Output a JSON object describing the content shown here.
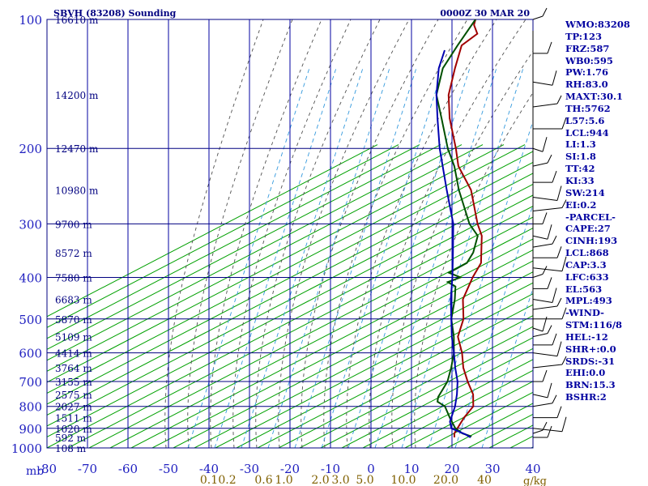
{
  "chart_data": {
    "type": "line",
    "station": "SBVH (83208)",
    "title_left": "SBVH (83208) Sounding",
    "title_right": "0000Z 30 MAR 20",
    "pressure_unit": "mb",
    "mixing_unit": "g/kg",
    "pressure_range": [
      100,
      1000
    ],
    "temperature_range": [
      -80,
      40
    ],
    "pressure_ticks": [
      100,
      200,
      300,
      400,
      500,
      600,
      700,
      800,
      900,
      1000
    ],
    "temperature_ticks": [
      -80,
      -70,
      -60,
      -50,
      -40,
      -30,
      -20,
      -10,
      0,
      10,
      20,
      30,
      40
    ],
    "temperature_tick_labels": [
      "-80",
      "-70",
      "-60",
      "-50",
      "-40",
      "-30",
      "-20",
      "-10",
      "0",
      "10",
      "20",
      "30",
      "40"
    ],
    "mixing_ratio_labels": [
      {
        "label": "0.1",
        "temp": -40
      },
      {
        "label": "0.2",
        "temp": -35.5
      },
      {
        "label": "0.6",
        "temp": -26.5
      },
      {
        "label": "1.0",
        "temp": -21.5
      },
      {
        "label": "2.0",
        "temp": -12.5
      },
      {
        "label": "3.0",
        "temp": -7.5
      },
      {
        "label": "5.0",
        "temp": -1.5
      },
      {
        "label": "10.0",
        "temp": 8
      },
      {
        "label": "20.0",
        "temp": 18.5
      },
      {
        "label": "40",
        "temp": 28
      }
    ],
    "height_labels": [
      {
        "label": "16610 m",
        "p": 100
      },
      {
        "label": "14200 m",
        "p": 150
      },
      {
        "label": "12470 m",
        "p": 200
      },
      {
        "label": "10980 m",
        "p": 250
      },
      {
        "label": "9700 m",
        "p": 300
      },
      {
        "label": "8572 m",
        "p": 350
      },
      {
        "label": "7580 m",
        "p": 400
      },
      {
        "label": "6683 m",
        "p": 450
      },
      {
        "label": "5870 m",
        "p": 500
      },
      {
        "label": "5109 m",
        "p": 550
      },
      {
        "label": "4414 m",
        "p": 600
      },
      {
        "label": "3764 m",
        "p": 650
      },
      {
        "label": "3155 m",
        "p": 700
      },
      {
        "label": "2575 m",
        "p": 750
      },
      {
        "label": "2027 m",
        "p": 800
      },
      {
        "label": "1511 m",
        "p": 850
      },
      {
        "label": "1020 m",
        "p": 900
      },
      {
        "label": "592 m",
        "p": 945
      },
      {
        "label": "108 m",
        "p": 1000
      }
    ],
    "series": [
      {
        "id": "temperature",
        "color": "#a00000",
        "points": [
          [
            945,
            18
          ],
          [
            925,
            17
          ],
          [
            900,
            16.5
          ],
          [
            850,
            15.5
          ],
          [
            800,
            15
          ],
          [
            750,
            12
          ],
          [
            700,
            7.5
          ],
          [
            650,
            3
          ],
          [
            600,
            -1
          ],
          [
            550,
            -6
          ],
          [
            500,
            -9
          ],
          [
            450,
            -14
          ],
          [
            400,
            -17
          ],
          [
            370,
            -18.5
          ],
          [
            350,
            -21
          ],
          [
            320,
            -25
          ],
          [
            300,
            -29
          ],
          [
            250,
            -39
          ],
          [
            220,
            -48
          ],
          [
            200,
            -53
          ],
          [
            170,
            -62
          ],
          [
            150,
            -68
          ],
          [
            130,
            -73
          ],
          [
            115,
            -77
          ],
          [
            108,
            -76
          ],
          [
            103,
            -79
          ],
          [
            100,
            -80
          ]
        ]
      },
      {
        "id": "dewpoint",
        "color": "#005000",
        "points": [
          [
            940,
            22
          ],
          [
            925,
            19
          ],
          [
            900,
            16
          ],
          [
            850,
            12
          ],
          [
            800,
            8
          ],
          [
            780,
            5
          ],
          [
            760,
            4
          ],
          [
            700,
            2.5
          ],
          [
            650,
            0
          ],
          [
            600,
            -3
          ],
          [
            550,
            -7
          ],
          [
            500,
            -12
          ],
          [
            450,
            -16
          ],
          [
            420,
            -19
          ],
          [
            410,
            -22
          ],
          [
            400,
            -20
          ],
          [
            390,
            -24
          ],
          [
            370,
            -22
          ],
          [
            350,
            -23
          ],
          [
            320,
            -26
          ],
          [
            300,
            -31
          ],
          [
            250,
            -42
          ],
          [
            220,
            -49
          ],
          [
            200,
            -55
          ],
          [
            170,
            -64
          ],
          [
            150,
            -71
          ],
          [
            130,
            -76
          ],
          [
            115,
            -78
          ],
          [
            100,
            -80
          ]
        ]
      },
      {
        "id": "parcel",
        "color": "#0000b0",
        "points": [
          [
            945,
            22
          ],
          [
            930,
            20
          ],
          [
            900,
            15
          ],
          [
            868,
            13
          ],
          [
            800,
            10.5
          ],
          [
            750,
            8
          ],
          [
            700,
            5
          ],
          [
            650,
            1
          ],
          [
            600,
            -3
          ],
          [
            550,
            -7.5
          ],
          [
            500,
            -12
          ],
          [
            450,
            -17
          ],
          [
            400,
            -22
          ],
          [
            350,
            -28
          ],
          [
            300,
            -35
          ],
          [
            250,
            -45
          ],
          [
            200,
            -57
          ],
          [
            170,
            -65
          ],
          [
            150,
            -71
          ],
          [
            130,
            -77
          ],
          [
            118,
            -80
          ]
        ]
      }
    ],
    "stats": [
      "WMO:83208",
      "TP:123",
      "FRZ:587",
      "WB0:595",
      "PW:1.76",
      "RH:83.0",
      "MAXT:30.1",
      "TH:5762",
      "L57:5.6",
      "LCL:944",
      "LI:1.3",
      "SI:1.8",
      "TT:42",
      "KI:33",
      "SW:214",
      "EI:0.2",
      "-PARCEL-",
      "CAPE:27",
      "CINH:193",
      "LCL:868",
      "CAP:3.3",
      "LFC:633",
      "EL:563",
      "MPL:493",
      "-WIND-",
      "STM:116/8",
      "HEL:-12",
      "SHR+:0.0",
      "SRDS:-31",
      "EHI:0.0",
      "BRN:15.3",
      "BSHR:2"
    ],
    "wind_pressures": [
      100,
      120,
      140,
      160,
      180,
      200,
      220,
      240,
      260,
      280,
      300,
      320,
      340,
      360,
      380,
      400,
      425,
      450,
      475,
      500,
      525,
      550,
      575,
      600,
      650,
      700,
      750,
      800,
      850,
      900,
      925,
      945
    ],
    "colors": {
      "isobar": "#000080",
      "isotherm": "#0000a0",
      "dry_adiabat": "#00a000",
      "moist_adiabat": "#505050",
      "mixing_ratio": "#3399dd",
      "label_blue": "#2020c0",
      "mixing_label": "#806000"
    }
  }
}
